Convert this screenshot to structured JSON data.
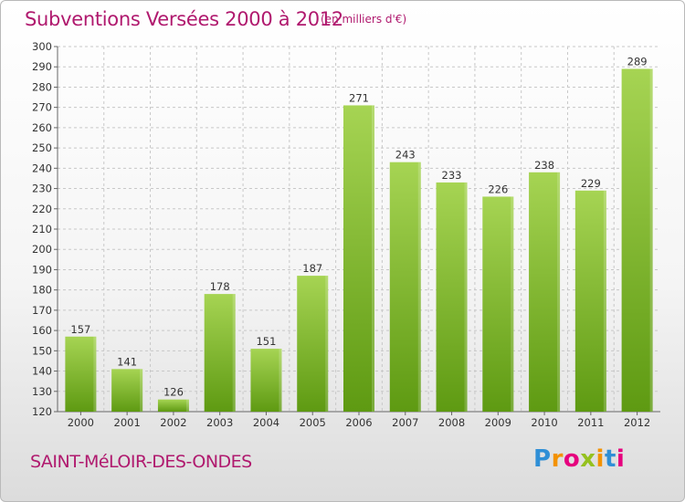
{
  "title": "Subventions Versées 2000 à 2012",
  "subtitle": "(en milliers d'€)",
  "commune": "SAINT-MéLOIR-DES-ONDES",
  "logo": {
    "text": "Proxiti",
    "letters": [
      {
        "ch": "P",
        "color": "#2f8fd6"
      },
      {
        "ch": "r",
        "color": "#f39200"
      },
      {
        "ch": "o",
        "color": "#e6007e"
      },
      {
        "ch": "x",
        "color": "#95c11f"
      },
      {
        "ch": "i",
        "color": "#f39200"
      },
      {
        "ch": "t",
        "color": "#2f8fd6"
      },
      {
        "ch": "i",
        "color": "#e6007e"
      }
    ]
  },
  "colors": {
    "title": "#b0196e",
    "bar_light": "#a6d453",
    "bar_dark": "#5e9a12",
    "grid": "#c8c8c8"
  },
  "chart_data": {
    "type": "bar",
    "categories": [
      "2000",
      "2001",
      "2002",
      "2003",
      "2004",
      "2005",
      "2006",
      "2007",
      "2008",
      "2009",
      "2010",
      "2011",
      "2012"
    ],
    "values": [
      157,
      141,
      126,
      178,
      151,
      187,
      271,
      243,
      233,
      226,
      238,
      229,
      289
    ],
    "ylim": [
      120,
      300
    ],
    "yticks": [
      120,
      130,
      140,
      150,
      160,
      170,
      180,
      190,
      200,
      210,
      220,
      230,
      240,
      250,
      260,
      270,
      280,
      290,
      300
    ],
    "grid": true,
    "xlabel": "",
    "ylabel": ""
  }
}
